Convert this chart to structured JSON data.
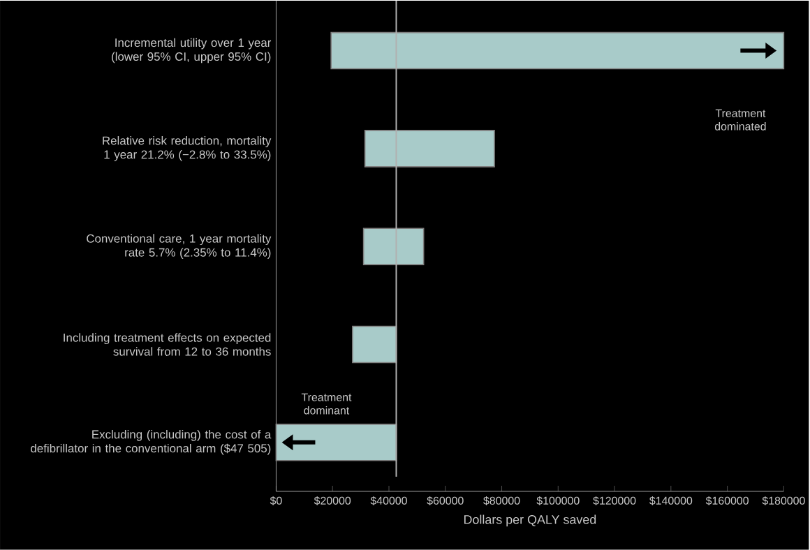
{
  "chart_data": {
    "type": "bar",
    "orientation": "horizontal",
    "xlabel": "Dollars per QALY saved",
    "categories": [
      "Incremental utility over 1 year (lower 95% CI, upper 95% CI)",
      "Relative risk reduction, mortality 1 year 21.2% (−2.8% to 33.5%)",
      "Conventional care, 1 year mortality rate 5.7% (2.35% to 11.4%)",
      "Including treatment effects on expected survival from 12 to 36 months",
      "Excluding (including) the cost of a defibrillator in the conventional arm ($47 505)"
    ],
    "base": [
      19500,
      31500,
      31000,
      27100,
      0
    ],
    "values": [
      160500,
      45900,
      21300,
      15500,
      42600
    ],
    "color": "#a8cbc9",
    "xlim": [
      0,
      180000
    ],
    "xticks": [
      {
        "value": 0,
        "label": "$0"
      },
      {
        "value": 20000,
        "label": "$20000"
      },
      {
        "value": 40000,
        "label": "$40000"
      },
      {
        "value": 60000,
        "label": "$60000"
      },
      {
        "value": 80000,
        "label": "$80000"
      },
      {
        "value": 100000,
        "label": "$100000"
      },
      {
        "value": 120000,
        "label": "$120000"
      },
      {
        "value": 140000,
        "label": "$140000"
      },
      {
        "value": 160000,
        "label": "$160000"
      },
      {
        "value": 180000,
        "label": "$180000"
      }
    ],
    "ref_lines": [
      {
        "axis": "x",
        "value": 42600,
        "color": "#b0b0b0"
      }
    ],
    "annotations": [
      "Treatment dominated",
      "Treatment dominant"
    ]
  }
}
